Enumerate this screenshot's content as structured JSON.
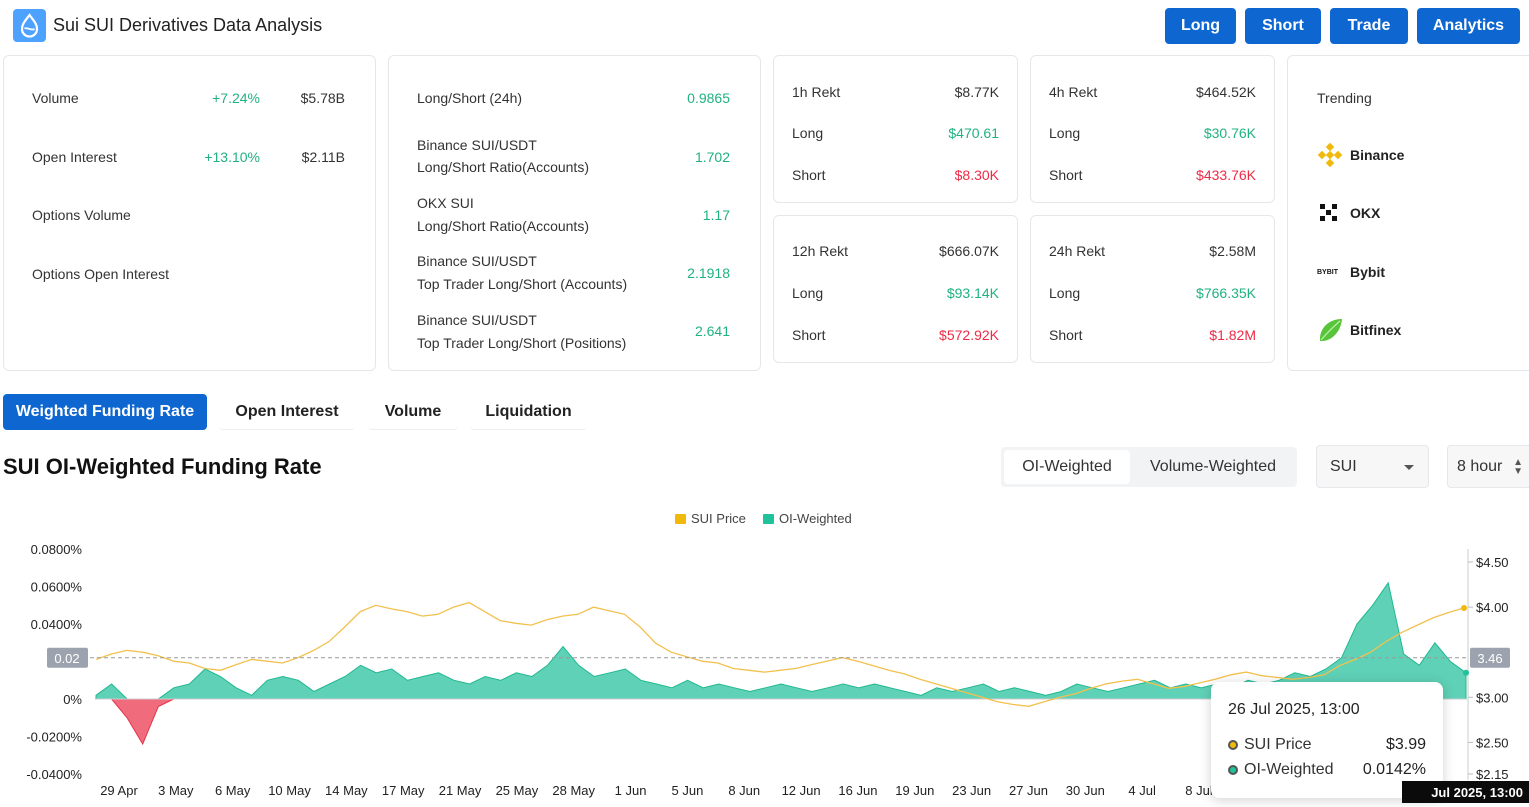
{
  "header": {
    "title": "Sui SUI Derivatives Data Analysis",
    "buttons": [
      "Long",
      "Short",
      "Trade",
      "Analytics"
    ],
    "logo_color": "#4da2ff"
  },
  "summary": {
    "volume": {
      "label": "Volume",
      "change": "+7.24%",
      "value": "$5.78B"
    },
    "open_interest": {
      "label": "Open Interest",
      "change": "+13.10%",
      "value": "$2.11B"
    },
    "options_volume": {
      "label": "Options Volume"
    },
    "options_oi": {
      "label": "Options Open Interest"
    }
  },
  "ratios": [
    {
      "line1": "Long/Short (24h)",
      "line2": "",
      "value": "0.9865"
    },
    {
      "line1": "Binance SUI/USDT",
      "line2": "Long/Short Ratio(Accounts)",
      "value": "1.702"
    },
    {
      "line1": "OKX SUI",
      "line2": "Long/Short Ratio(Accounts)",
      "value": "1.17"
    },
    {
      "line1": "Binance SUI/USDT",
      "line2": "Top Trader Long/Short (Accounts)",
      "value": "2.1918"
    },
    {
      "line1": "Binance SUI/USDT",
      "line2": "Top Trader Long/Short (Positions)",
      "value": "2.641"
    }
  ],
  "rekt": [
    {
      "label": "1h Rekt",
      "total": "$8.77K",
      "long_label": "Long",
      "long": "$470.61",
      "short_label": "Short",
      "short": "$8.30K"
    },
    {
      "label": "4h Rekt",
      "total": "$464.52K",
      "long_label": "Long",
      "long": "$30.76K",
      "short_label": "Short",
      "short": "$433.76K"
    },
    {
      "label": "12h Rekt",
      "total": "$666.07K",
      "long_label": "Long",
      "long": "$93.14K",
      "short_label": "Short",
      "short": "$572.92K"
    },
    {
      "label": "24h Rekt",
      "total": "$2.58M",
      "long_label": "Long",
      "long": "$766.35K",
      "short_label": "Short",
      "short": "$1.82M"
    }
  ],
  "trending": {
    "title": "Trending",
    "items": [
      {
        "name": "Binance",
        "icon": "binance-icon"
      },
      {
        "name": "OKX",
        "icon": "okx-icon"
      },
      {
        "name": "Bybit",
        "icon": "bybit-icon",
        "icon_text": "BYBIT"
      },
      {
        "name": "Bitfinex",
        "icon": "bitfinex-icon"
      }
    ]
  },
  "tabs": [
    "Weighted Funding Rate",
    "Open Interest",
    "Volume",
    "Liquidation"
  ],
  "chart_section": {
    "title": "SUI OI-Weighted Funding Rate",
    "weighting": [
      "OI-Weighted",
      "Volume-Weighted"
    ],
    "coin": "SUI",
    "interval": "8 hour"
  },
  "chart_data": {
    "type": "line",
    "legend": [
      {
        "name": "SUI Price",
        "color": "#f0b90b"
      },
      {
        "name": "OI-Weighted",
        "color": "#20c29a"
      }
    ],
    "left_axis_ticks": [
      "0.0800%",
      "0.0600%",
      "0.0400%",
      "0.02",
      "0%",
      "-0.0200%",
      "-0.0400%"
    ],
    "left_ylim": [
      -0.04,
      0.08
    ],
    "right_axis_ticks": [
      "$4.50",
      "$4.00",
      "3.46",
      "$3.00",
      "$2.50",
      "$2.15"
    ],
    "right_ylim": [
      2.15,
      4.5
    ],
    "x_ticks": [
      "29 Apr",
      "3 May",
      "6 May",
      "10 May",
      "14 May",
      "17 May",
      "21 May",
      "25 May",
      "28 May",
      "1 Jun",
      "5 Jun",
      "8 Jun",
      "12 Jun",
      "16 Jun",
      "19 Jun",
      "23 Jun",
      "27 Jun",
      "30 Jun",
      "4 Jul",
      "8 Jul"
    ],
    "crosshair": {
      "left_value_label": "0.02",
      "right_value_label": "3.46"
    },
    "series": [
      {
        "name": "SUI Price",
        "values": [
          3.42,
          3.48,
          3.52,
          3.5,
          3.46,
          3.4,
          3.38,
          3.32,
          3.3,
          3.36,
          3.42,
          3.4,
          3.38,
          3.44,
          3.52,
          3.62,
          3.78,
          3.95,
          4.02,
          3.98,
          3.95,
          3.9,
          3.92,
          4.0,
          4.05,
          3.95,
          3.85,
          3.82,
          3.8,
          3.86,
          3.9,
          3.92,
          4.0,
          3.96,
          3.92,
          3.78,
          3.6,
          3.5,
          3.45,
          3.4,
          3.38,
          3.32,
          3.3,
          3.28,
          3.3,
          3.32,
          3.36,
          3.4,
          3.44,
          3.4,
          3.35,
          3.3,
          3.26,
          3.2,
          3.15,
          3.1,
          3.05,
          3.0,
          2.95,
          2.92,
          2.9,
          2.95,
          3.0,
          3.04,
          3.1,
          3.15,
          3.18,
          3.2,
          3.15,
          3.1,
          3.12,
          3.16,
          3.2,
          3.25,
          3.28,
          3.24,
          3.22,
          3.2,
          3.22,
          3.25,
          3.35,
          3.42,
          3.5,
          3.62,
          3.72,
          3.8,
          3.88,
          3.94,
          3.99
        ]
      },
      {
        "name": "OI-Weighted",
        "values": [
          0.002,
          0.008,
          -0.01,
          -0.024,
          -0.004,
          0.006,
          0.008,
          0.016,
          0.012,
          0.006,
          0.002,
          0.01,
          0.012,
          0.01,
          0.004,
          0.008,
          0.012,
          0.018,
          0.014,
          0.016,
          0.01,
          0.012,
          0.014,
          0.01,
          0.008,
          0.012,
          0.01,
          0.014,
          0.012,
          0.018,
          0.028,
          0.018,
          0.012,
          0.014,
          0.016,
          0.01,
          0.008,
          0.006,
          0.01,
          0.006,
          0.008,
          0.006,
          0.004,
          0.006,
          0.008,
          0.006,
          0.004,
          0.006,
          0.008,
          0.006,
          0.008,
          0.006,
          0.004,
          0.002,
          0.006,
          0.004,
          0.006,
          0.008,
          0.004,
          0.006,
          0.004,
          0.002,
          0.004,
          0.008,
          0.006,
          0.004,
          0.006,
          0.008,
          0.01,
          0.006,
          0.008,
          0.006,
          0.008,
          0.006,
          0.01,
          0.008,
          0.01,
          0.014,
          0.012,
          0.016,
          0.022,
          0.04,
          0.05,
          0.062,
          0.024,
          0.018,
          0.03,
          0.02,
          0.014
        ]
      }
    ]
  },
  "tooltip": {
    "date": "26 Jul 2025, 13:00",
    "rows": [
      {
        "label": "SUI Price",
        "value": "$3.99",
        "color": "#f0b90b"
      },
      {
        "label": "OI-Weighted",
        "value": "0.0142%",
        "color": "#20c29a"
      }
    ]
  },
  "axis_date_label": "Jul 2025, 13:00"
}
